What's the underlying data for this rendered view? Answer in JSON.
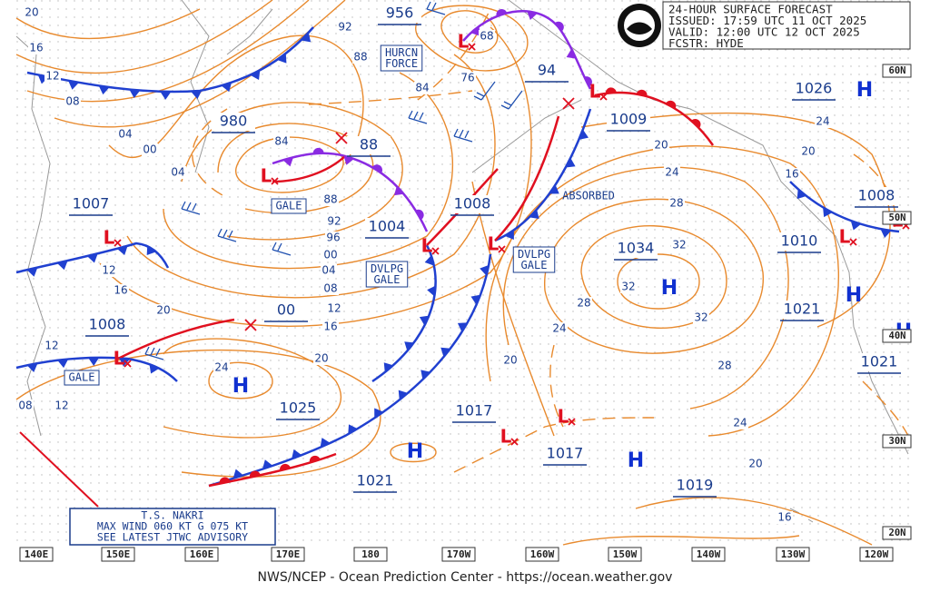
{
  "header": {
    "lines": [
      "24-HOUR SURFACE FORECAST",
      "ISSUED: 17:59 UTC 11 OCT 2025",
      "VALID:  12:00 UTC 12 OCT 2025",
      "FCSTR:  HYDE"
    ]
  },
  "pressure_boxes": [
    "956",
    "94",
    "980",
    "88",
    "1009",
    "1026",
    "1007",
    "1008",
    "1004",
    "1008",
    "1034",
    "1010",
    "1008",
    "00",
    "1021",
    "1021",
    "1025",
    "1017",
    "1017",
    "1021",
    "1019"
  ],
  "isobar_labels": [
    "20",
    "16",
    "12",
    "08",
    "04",
    "00",
    "04",
    "92",
    "88",
    "84",
    "76",
    "68",
    "84",
    "88",
    "92",
    "96",
    "00",
    "04",
    "08",
    "12",
    "16",
    "20",
    "20",
    "16",
    "12",
    "12",
    "08",
    "12",
    "24",
    "24",
    "20",
    "16",
    "20",
    "24",
    "28",
    "32",
    "32",
    "32",
    "28",
    "24",
    "20",
    "28",
    "24",
    "20",
    "16"
  ],
  "annotations": [
    "HURCN FORCE",
    "GALE",
    "GALE",
    "DVLPG GALE",
    "DVLPG GALE",
    "ABSORBED"
  ],
  "highs": [
    "H",
    "H",
    "H",
    "H",
    "H",
    "H",
    "H"
  ],
  "lows": [
    "L",
    "L",
    "L",
    "L",
    "L",
    "L",
    "L",
    "L",
    "L",
    "L",
    "L"
  ],
  "storm_box": [
    "T.S. NAKRI",
    "MAX WIND 060 KT G 075 KT",
    "SEE LATEST JTWC ADVISORY"
  ],
  "lon_labels": [
    "140E",
    "150E",
    "160E",
    "170E",
    "180",
    "170W",
    "160W",
    "150W",
    "140W",
    "130W",
    "120W"
  ],
  "lat_labels": [
    "60N",
    "50N",
    "40N",
    "30N",
    "20N"
  ],
  "footer": "NWS/NCEP - Ocean Prediction Center - https://ocean.weather.gov"
}
